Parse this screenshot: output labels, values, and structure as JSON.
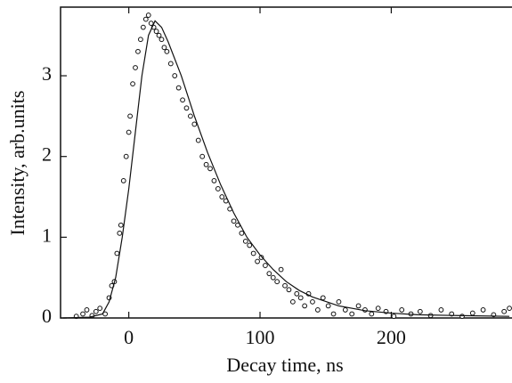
{
  "chart_data": {
    "type": "scatter",
    "x_label": "Decay time, ns",
    "y_label": "Intensity, arb.units",
    "xlim": [
      -52,
      292
    ],
    "ylim": [
      0,
      3.85
    ],
    "xticks": [
      0,
      100,
      200
    ],
    "yticks": [
      0,
      1,
      2,
      3
    ],
    "series": [
      {
        "mode": "markers",
        "color": "#111111",
        "x": [
          -40,
          -35,
          -32,
          -28,
          -25,
          -22,
          -18,
          -15,
          -13,
          -11,
          -9,
          -7,
          -6,
          -4,
          -2,
          0,
          1,
          3,
          5,
          7,
          9,
          11,
          13,
          15,
          17,
          19,
          21,
          23,
          25,
          27,
          29,
          32,
          35,
          38,
          41,
          44,
          47,
          50,
          53,
          56,
          59,
          62,
          65,
          68,
          71,
          74,
          77,
          80,
          83,
          86,
          89,
          92,
          95,
          98,
          101,
          104,
          107,
          110,
          113,
          116,
          119,
          122,
          125,
          128,
          131,
          134,
          137,
          140,
          144,
          148,
          152,
          156,
          160,
          165,
          170,
          175,
          180,
          185,
          190,
          196,
          202,
          208,
          215,
          222,
          230,
          238,
          246,
          254,
          262,
          270,
          278,
          286,
          290
        ],
        "values": [
          0.02,
          0.05,
          0.1,
          0.03,
          0.08,
          0.12,
          0.05,
          0.25,
          0.4,
          0.45,
          0.8,
          1.05,
          1.15,
          1.7,
          2.0,
          2.3,
          2.5,
          2.9,
          3.1,
          3.3,
          3.45,
          3.6,
          3.7,
          3.75,
          3.65,
          3.6,
          3.55,
          3.5,
          3.45,
          3.35,
          3.3,
          3.15,
          3.0,
          2.85,
          2.7,
          2.6,
          2.5,
          2.4,
          2.2,
          2.0,
          1.9,
          1.85,
          1.7,
          1.6,
          1.5,
          1.45,
          1.35,
          1.2,
          1.15,
          1.05,
          0.95,
          0.9,
          0.8,
          0.7,
          0.75,
          0.65,
          0.55,
          0.5,
          0.45,
          0.6,
          0.4,
          0.35,
          0.2,
          0.3,
          0.25,
          0.15,
          0.3,
          0.2,
          0.1,
          0.25,
          0.15,
          0.05,
          0.2,
          0.1,
          0.05,
          0.15,
          0.1,
          0.05,
          0.12,
          0.08,
          0.02,
          0.1,
          0.05,
          0.08,
          0.03,
          0.1,
          0.05,
          0.02,
          0.06,
          0.1,
          0.04,
          0.08,
          0.12
        ]
      },
      {
        "mode": "line",
        "color": "#111111",
        "x": [
          -50,
          -30,
          -20,
          -15,
          -10,
          -5,
          0,
          5,
          10,
          15,
          20,
          25,
          30,
          40,
          50,
          60,
          70,
          80,
          90,
          100,
          110,
          120,
          130,
          140,
          160,
          180,
          200,
          220,
          250,
          290
        ],
        "values": [
          0,
          0.01,
          0.05,
          0.2,
          0.5,
          1.0,
          1.6,
          2.3,
          3.0,
          3.5,
          3.68,
          3.6,
          3.42,
          3.0,
          2.5,
          2.05,
          1.65,
          1.3,
          1.0,
          0.78,
          0.6,
          0.45,
          0.34,
          0.26,
          0.15,
          0.09,
          0.06,
          0.04,
          0.03,
          0.02
        ]
      }
    ]
  }
}
